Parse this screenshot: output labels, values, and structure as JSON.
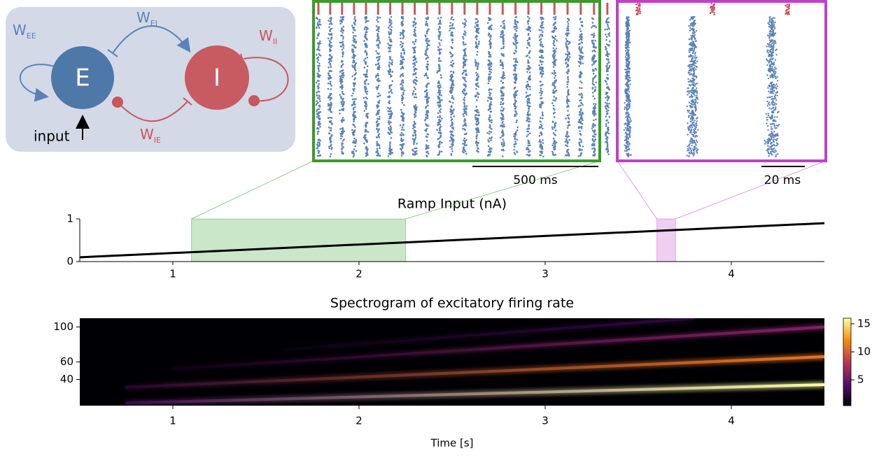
{
  "diagram": {
    "nodes": [
      "E",
      "I"
    ],
    "input": "input",
    "weights": [
      {
        "symbol": "W",
        "sub": "EE"
      },
      {
        "symbol": "W",
        "sub": "EI"
      },
      {
        "symbol": "W",
        "sub": "II"
      },
      {
        "symbol": "W",
        "sub": "IE"
      }
    ]
  },
  "raster": {
    "scale_bars": [
      "500 ms",
      "20 ms"
    ]
  },
  "chart_data": [
    {
      "type": "line",
      "title": "Ramp Input (nA)",
      "x": [
        0.5,
        4.5
      ],
      "values": [
        0.1,
        0.9
      ],
      "color": "#000000",
      "xlim": [
        0.5,
        4.5
      ],
      "xticks": [
        1,
        2,
        3,
        4
      ],
      "ylim": [
        0,
        1
      ],
      "yticks": [
        0,
        1
      ],
      "highlights": [
        {
          "xlim": [
            1.1,
            2.25
          ],
          "color": "#2ca02c"
        },
        {
          "xlim": [
            3.6,
            3.7
          ],
          "color": "#c040c8"
        }
      ]
    },
    {
      "type": "heatmap",
      "title": "Spectrogram of excitatory firing rate",
      "xlabel": "Time [s]",
      "xlim": [
        0.5,
        4.5
      ],
      "xticks": [
        1,
        2,
        3,
        4
      ],
      "ylim": [
        10,
        110
      ],
      "yticks": [
        40,
        60,
        100
      ],
      "clim": [
        0.4,
        16
      ],
      "cticks": [
        5,
        10,
        15
      ],
      "ridges": [
        {
          "x": [
            0.75,
            4.5
          ],
          "values": [
            13,
            34
          ],
          "intensity": [
            3,
            16
          ]
        },
        {
          "x": [
            0.75,
            4.5
          ],
          "values": [
            31,
            66
          ],
          "intensity": [
            2,
            11
          ]
        },
        {
          "x": [
            1.0,
            4.5
          ],
          "values": [
            52,
            100
          ],
          "intensity": [
            1,
            6
          ]
        },
        {
          "x": [
            1.6,
            3.8
          ],
          "values": [
            74,
            110
          ],
          "intensity": [
            0.8,
            2.5
          ]
        }
      ]
    }
  ]
}
